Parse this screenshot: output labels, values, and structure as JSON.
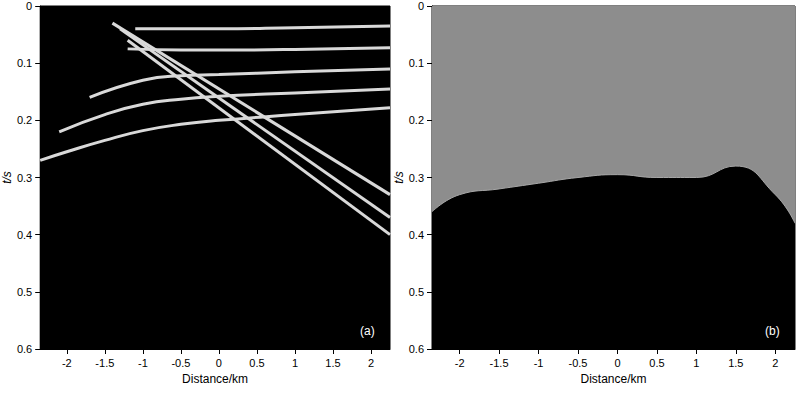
{
  "chart_data": [
    {
      "type": "line",
      "xlabel": "Distance/km",
      "ylabel": "t/s",
      "annotation": "(a)",
      "xlim": [
        -2.35,
        2.25
      ],
      "xticks": [
        -2,
        -1.5,
        -1,
        -0.5,
        0,
        0.5,
        1,
        1.5,
        2
      ],
      "ylim": [
        0,
        0.6
      ],
      "yticks": [
        0,
        0.1,
        0.2,
        0.3,
        0.4,
        0.5,
        0.6
      ],
      "color": "#d9d9d9",
      "series": [
        {
          "x": [
            -1.1,
            -0.5,
            0,
            1,
            2.25
          ],
          "values": [
            0.04,
            0.04,
            0.04,
            0.038,
            0.035
          ]
        },
        {
          "x": [
            -1.2,
            -0.5,
            0,
            1,
            2.25
          ],
          "values": [
            0.075,
            0.077,
            0.077,
            0.076,
            0.073
          ]
        },
        {
          "x": [
            -1.7,
            -1,
            -0.5,
            0,
            1,
            2.25
          ],
          "values": [
            0.16,
            0.13,
            0.122,
            0.12,
            0.115,
            0.11
          ]
        },
        {
          "x": [
            -2.1,
            -1.5,
            -1,
            -0.5,
            0,
            1,
            2.25
          ],
          "values": [
            0.22,
            0.19,
            0.172,
            0.163,
            0.158,
            0.152,
            0.145
          ]
        },
        {
          "x": [
            -2.35,
            -2,
            -1.5,
            -1,
            -0.5,
            0,
            1,
            2.25
          ],
          "values": [
            0.27,
            0.255,
            0.235,
            0.218,
            0.207,
            0.2,
            0.19,
            0.178
          ]
        },
        {
          "x": [
            -1.4,
            2.25
          ],
          "values": [
            0.03,
            0.33
          ]
        },
        {
          "x": [
            -1.3,
            2.25
          ],
          "values": [
            0.04,
            0.37
          ]
        },
        {
          "x": [
            -1.2,
            2.25
          ],
          "values": [
            0.06,
            0.4
          ]
        }
      ]
    },
    {
      "type": "area",
      "xlabel": "Distance/km",
      "ylabel": "t/s",
      "annotation": "(b)",
      "xlim": [
        -2.35,
        2.25
      ],
      "xticks": [
        -2,
        -1.5,
        -1,
        -0.5,
        0,
        0.5,
        1,
        1.5,
        2
      ],
      "ylim": [
        0,
        0.6
      ],
      "yticks": [
        0,
        0.1,
        0.2,
        0.3,
        0.4,
        0.5,
        0.6
      ],
      "color": "#a6a6a6",
      "series": [
        {
          "x": [
            -2.35,
            -2,
            -1.5,
            -1,
            -0.5,
            0,
            0.5,
            1,
            1.5,
            2,
            2.25
          ],
          "values": [
            0.36,
            0.33,
            0.32,
            0.31,
            0.3,
            0.295,
            0.3,
            0.3,
            0.28,
            0.33,
            0.38
          ]
        }
      ]
    }
  ]
}
